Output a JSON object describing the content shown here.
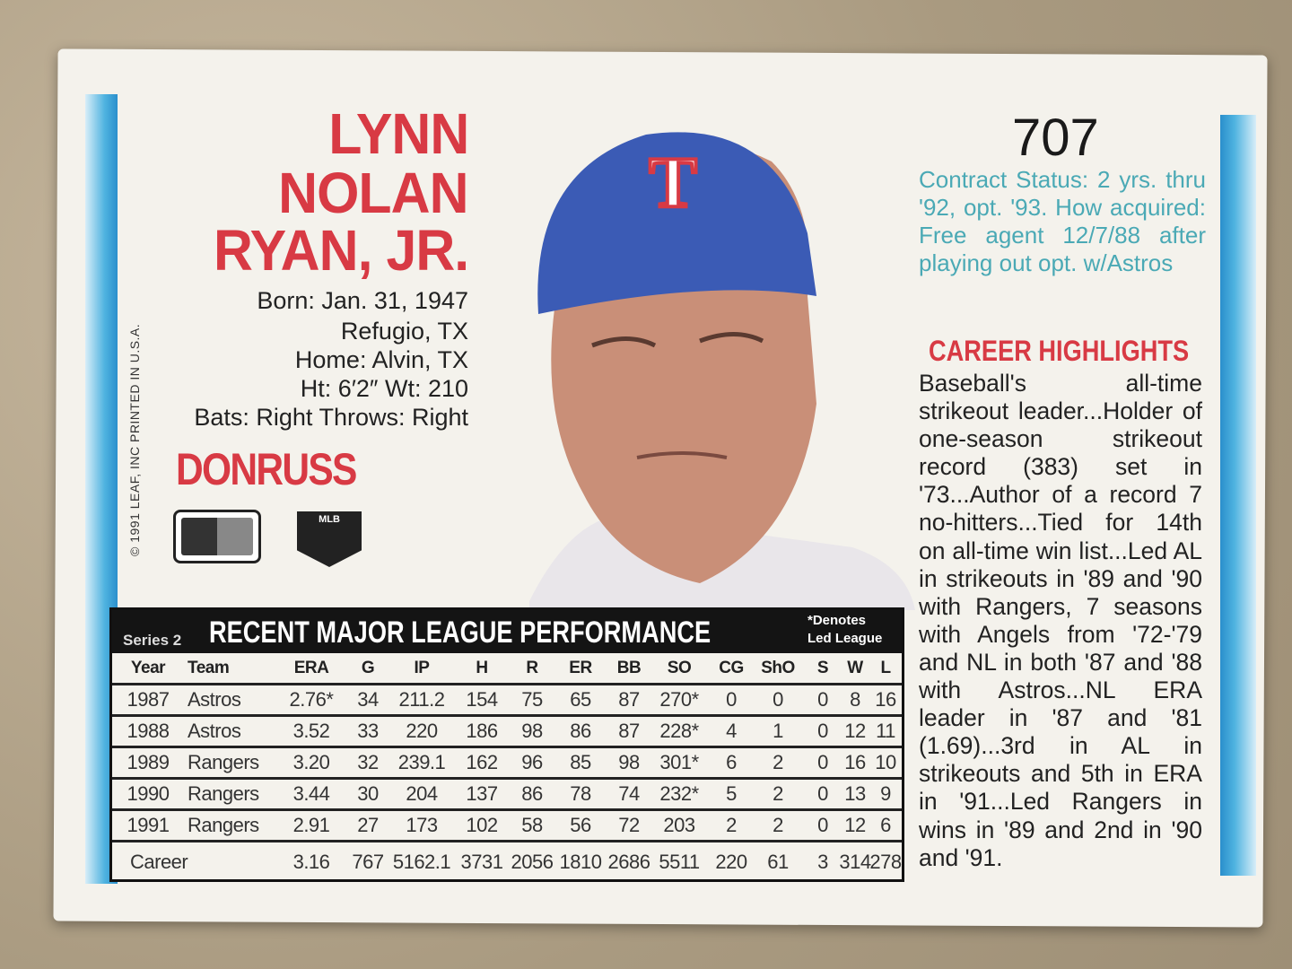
{
  "card": {
    "number": "707",
    "name_lines": [
      "LYNN",
      "NOLAN",
      "RYAN, JR."
    ],
    "bio": [
      "Born: Jan. 31, 1947",
      "Refugio, TX",
      "Home: Alvin, TX",
      "Ht: 6′2″  Wt: 210",
      "Bats: Right  Throws: Right"
    ],
    "brand": "DONRUSS",
    "copyright": "© 1991 LEAF, INC  PRINTED IN U.S.A.",
    "mlb_logo": "MLB",
    "cap_letter": "T",
    "contract": "Contract Status: 2 yrs. thru '92, opt. '93. How acquired: Free agent 12/7/88 after playing out opt. w/Astros",
    "highlights_title": "CAREER HIGHLIGHTS",
    "highlights": "Baseball's all-time strikeout leader...Holder of one-season strikeout record (383) set in '73...Author of a record 7 no-hitters...Tied for 14th on all-time win list...Led AL in strikeouts in '89 and '90 with Rangers, 7 seasons with Angels from '72-'79 and NL in both '87 and '88 with Astros...NL ERA leader in '87 and '81 (1.69)...3rd in AL in strikeouts and 5th in ERA in '91...Led Rangers in wins in '89 and 2nd in '90 and '91."
  },
  "table": {
    "series": "Series 2",
    "title": "RECENT MAJOR LEAGUE PERFORMANCE",
    "note": [
      "*Denotes",
      "Led League"
    ],
    "columns": [
      "Year",
      "Team",
      "ERA",
      "G",
      "IP",
      "H",
      "R",
      "ER",
      "BB",
      "SO",
      "CG",
      "ShO",
      "S",
      "W",
      "L"
    ],
    "rows": [
      [
        "1987",
        "Astros",
        "2.76*",
        "34",
        "211.2",
        "154",
        "75",
        "65",
        "87",
        "270*",
        "0",
        "0",
        "0",
        "8",
        "16"
      ],
      [
        "1988",
        "Astros",
        "3.52",
        "33",
        "220",
        "186",
        "98",
        "86",
        "87",
        "228*",
        "4",
        "1",
        "0",
        "12",
        "11"
      ],
      [
        "1989",
        "Rangers",
        "3.20",
        "32",
        "239.1",
        "162",
        "96",
        "85",
        "98",
        "301*",
        "6",
        "2",
        "0",
        "16",
        "10"
      ],
      [
        "1990",
        "Rangers",
        "3.44",
        "30",
        "204",
        "137",
        "86",
        "78",
        "74",
        "232*",
        "5",
        "2",
        "0",
        "13",
        "9"
      ],
      [
        "1991",
        "Rangers",
        "2.91",
        "27",
        "173",
        "102",
        "58",
        "56",
        "72",
        "203",
        "2",
        "2",
        "0",
        "12",
        "6"
      ],
      [
        "Career",
        "",
        "3.16",
        "767",
        "5162.1",
        "3731",
        "2056",
        "1810",
        "2686",
        "5511",
        "220",
        "61",
        "3",
        "314",
        "278"
      ]
    ]
  },
  "colors": {
    "name_red": "#d83a44",
    "contract_teal": "#4aa9b5",
    "border_blue": "#4fb3e0",
    "cap_blue": "#3b5bb5"
  }
}
